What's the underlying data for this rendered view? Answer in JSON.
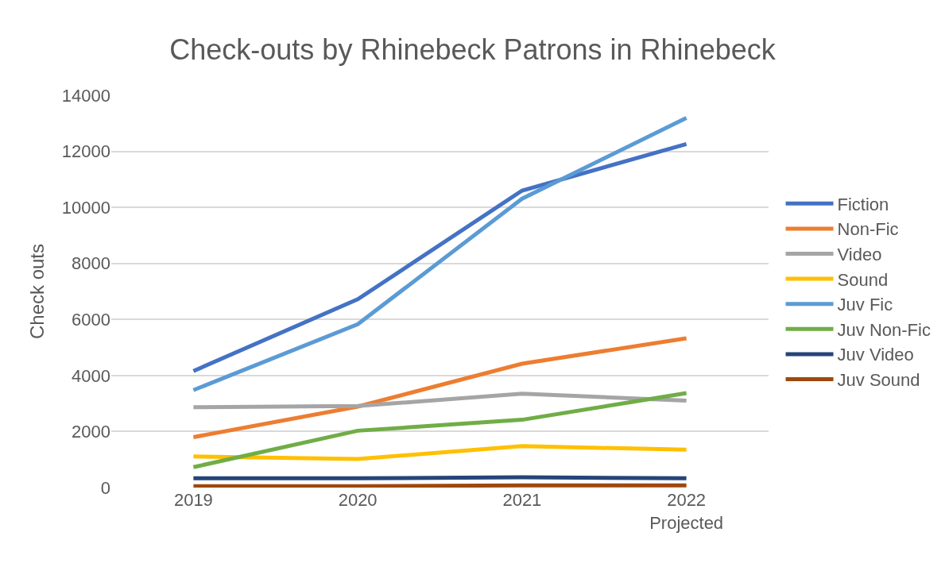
{
  "chart_data": {
    "type": "line",
    "title": "Check-outs by Rhinebeck Patrons in Rhinebeck",
    "ylabel": "Check outs",
    "categories": [
      "2019",
      "2020",
      "2021",
      "2022\nProjected"
    ],
    "series": [
      {
        "name": "Fiction",
        "color": "#4472c4",
        "values": [
          4160,
          6720,
          10600,
          12260
        ]
      },
      {
        "name": "Non-Fic",
        "color": "#ed7d31",
        "values": [
          1800,
          2890,
          4420,
          5330
        ]
      },
      {
        "name": "Video",
        "color": "#a5a5a5",
        "values": [
          2870,
          2910,
          3350,
          3100
        ]
      },
      {
        "name": "Sound",
        "color": "#ffc000",
        "values": [
          1110,
          1020,
          1480,
          1350
        ]
      },
      {
        "name": "Juv Fic",
        "color": "#5b9bd5",
        "values": [
          3480,
          5830,
          10310,
          13190
        ]
      },
      {
        "name": "Juv Non-Fic",
        "color": "#70ad47",
        "values": [
          730,
          2030,
          2420,
          3370
        ]
      },
      {
        "name": "Juv Video",
        "color": "#264478",
        "values": [
          330,
          330,
          370,
          330
        ]
      },
      {
        "name": "Juv Sound",
        "color": "#9e480e",
        "values": [
          50,
          50,
          80,
          80
        ]
      }
    ],
    "ylim": [
      0,
      14000
    ],
    "yticks": [
      0,
      2000,
      4000,
      6000,
      8000,
      10000,
      12000,
      14000
    ],
    "grid": "y",
    "legend": "right",
    "marker": "none",
    "line_style": "solid"
  }
}
